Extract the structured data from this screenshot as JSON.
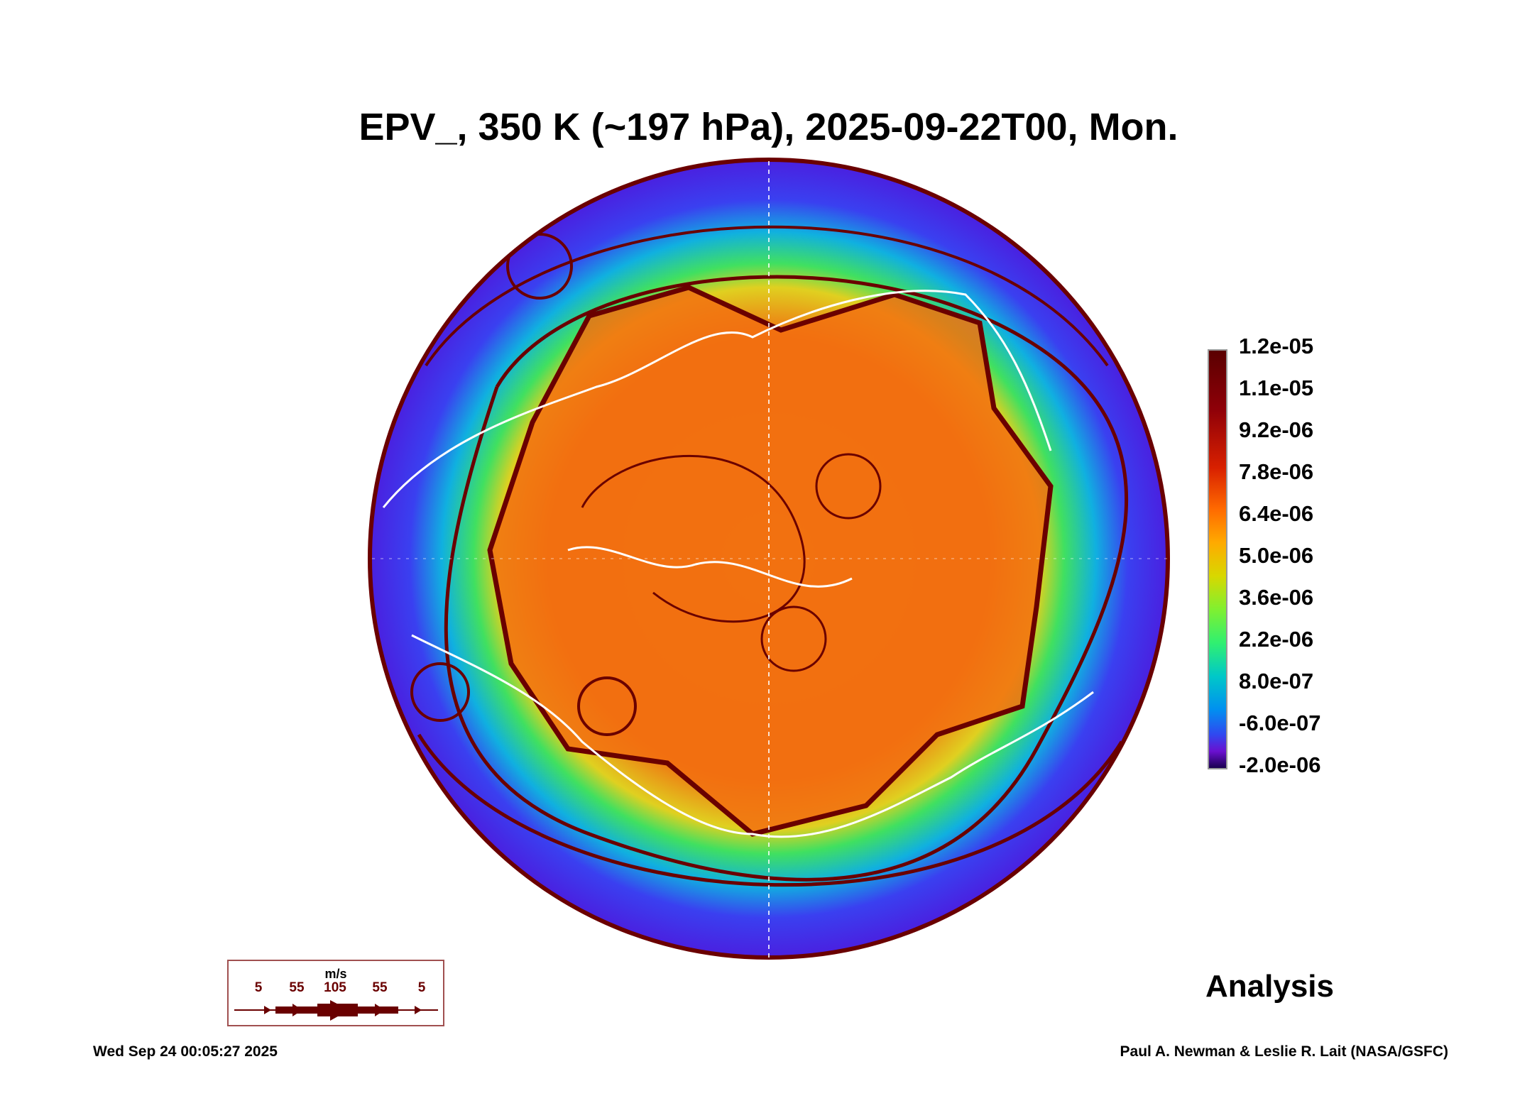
{
  "title": "EPV_, 350 K (~197 hPa), 2025-09-22T00, Mon.",
  "colorbar": {
    "labels": [
      "1.2e-05",
      "1.1e-05",
      "9.2e-06",
      "7.8e-06",
      "6.4e-06",
      "5.0e-06",
      "3.6e-06",
      "2.2e-06",
      "8.0e-07",
      "-6.0e-07",
      "-2.0e-06"
    ],
    "colors": [
      "#5a0000",
      "#d82000",
      "#ff6a00",
      "#ffaa00",
      "#d8d800",
      "#30f070",
      "#00c8c8",
      "#3048f0",
      "#1a0050"
    ]
  },
  "wind_key": {
    "unit": "m/s",
    "labels": [
      "5",
      "55",
      "105",
      "55",
      "5"
    ],
    "color": "#6a0000"
  },
  "analysis_label": "Analysis",
  "footer": {
    "timestamp": "Wed Sep 24 00:05:27 2025",
    "credit": "Paul A. Newman & Leslie R. Lait (NASA/GSFC)"
  }
}
